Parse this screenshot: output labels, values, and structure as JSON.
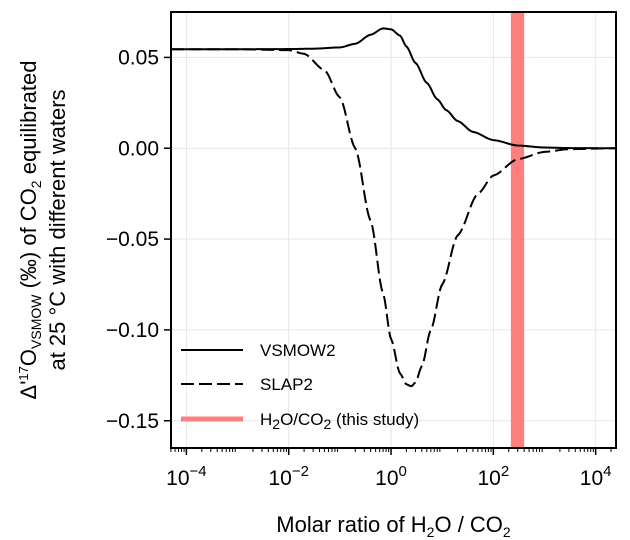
{
  "chart_data": {
    "type": "line",
    "x_scale": "log",
    "xlim": [
      5e-05,
      25000
    ],
    "ylim": [
      -0.165,
      0.075
    ],
    "grid": true,
    "legend_position": "lower-left",
    "colors": {
      "vsmow2": "#000000",
      "slap2": "#000000",
      "study": "#ff7f7f"
    },
    "x_ticks": [
      {
        "value": 0.0001,
        "base": "10",
        "exp": "−4"
      },
      {
        "value": 0.01,
        "base": "10",
        "exp": "−2"
      },
      {
        "value": 1,
        "base": "10",
        "exp": "0"
      },
      {
        "value": 100,
        "base": "10",
        "exp": "2"
      },
      {
        "value": 10000,
        "base": "10",
        "exp": "4"
      }
    ],
    "y_ticks": [
      {
        "value": 0.05,
        "label": "0.05"
      },
      {
        "value": 0.0,
        "label": "0.00"
      },
      {
        "value": -0.05,
        "label": "−0.05"
      },
      {
        "value": -0.1,
        "label": "−0.10"
      },
      {
        "value": -0.15,
        "label": "−0.15"
      }
    ],
    "xlabel": {
      "pre": "Molar ratio of H",
      "sub1": "2",
      "mid": "O / CO",
      "sub2": "2"
    },
    "ylabel": {
      "line1_pre": "Δ'",
      "line1_sup": "17",
      "line1_o": "O",
      "line1_sub": "VSMOW",
      "line1_mid": " (‰) of CO",
      "line1_sub2": "2",
      "line1_post": " equilibrated",
      "line2": "at 25 °C with different waters"
    },
    "study_band": {
      "x_min": 220,
      "x_max": 400
    },
    "series": [
      {
        "name": "VSMOW2",
        "style": "solid",
        "x": [
          5e-05,
          0.001,
          0.01,
          0.03,
          0.1,
          0.2,
          0.4,
          0.7,
          1,
          1.5,
          2,
          3,
          5,
          8,
          12,
          20,
          40,
          100,
          300,
          1000,
          3000,
          25000
        ],
        "y": [
          0.0545,
          0.0545,
          0.0546,
          0.0548,
          0.0555,
          0.0575,
          0.0625,
          0.066,
          0.0655,
          0.062,
          0.056,
          0.047,
          0.036,
          0.027,
          0.021,
          0.015,
          0.009,
          0.0045,
          0.0015,
          0.0004,
          0.0001,
          0.0
        ]
      },
      {
        "name": "SLAP2",
        "style": "dashed",
        "x": [
          5e-05,
          0.001,
          0.01,
          0.02,
          0.05,
          0.1,
          0.2,
          0.4,
          0.7,
          1,
          1.5,
          2,
          2.5,
          3,
          4,
          6,
          10,
          20,
          50,
          100,
          300,
          1000,
          3000,
          25000
        ],
        "y": [
          0.0545,
          0.0545,
          0.054,
          0.052,
          0.043,
          0.028,
          0.0,
          -0.04,
          -0.08,
          -0.105,
          -0.124,
          -0.13,
          -0.131,
          -0.129,
          -0.12,
          -0.1,
          -0.075,
          -0.048,
          -0.025,
          -0.015,
          -0.006,
          -0.002,
          -0.0005,
          0.0
        ]
      }
    ],
    "legend": [
      {
        "label": "VSMOW2",
        "style": "solid"
      },
      {
        "label": "SLAP2",
        "style": "dashed"
      },
      {
        "label_pre": "H",
        "label_sub1": "2",
        "label_mid": "O/CO",
        "label_sub2": "2",
        "label_post": " (this study)",
        "style": "band"
      }
    ]
  }
}
